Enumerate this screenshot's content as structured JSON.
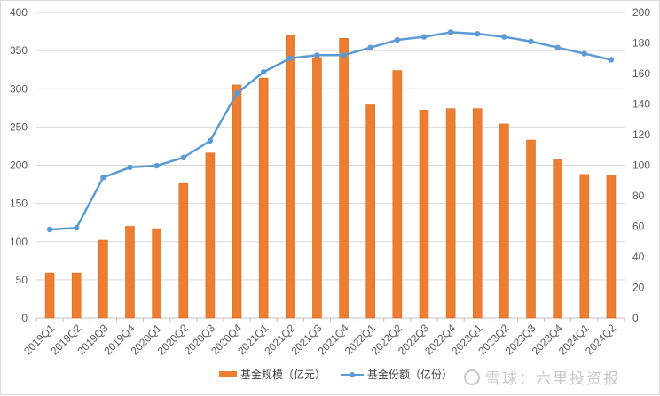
{
  "chart_data": {
    "type": "bar+line",
    "title": "",
    "categories": [
      "2019Q1",
      "2019Q2",
      "2019Q3",
      "2019Q4",
      "2020Q1",
      "2020Q2",
      "2020Q3",
      "2020Q4",
      "2021Q1",
      "2021Q2",
      "2021Q3",
      "2021Q4",
      "2022Q1",
      "2022Q2",
      "2022Q3",
      "2022Q4",
      "2023Q1",
      "2023Q2",
      "2023Q3",
      "2023Q4",
      "2024Q1",
      "2024Q2"
    ],
    "series": [
      {
        "name": "基金规模（亿元）",
        "type": "bar",
        "axis": "left",
        "color": "#ED7D31",
        "values": [
          59,
          59,
          102,
          120,
          117,
          176,
          216,
          305,
          314,
          370,
          341,
          366,
          280,
          324,
          272,
          274,
          274,
          254,
          233,
          208,
          188,
          187
        ]
      },
      {
        "name": "基金份额（亿份）",
        "type": "line",
        "axis": "right",
        "color": "#5B9BD5",
        "values": [
          58,
          59,
          92,
          98.6,
          99.7,
          105,
          116,
          147,
          161,
          170,
          172,
          172,
          177,
          182,
          184,
          187,
          186,
          184,
          181,
          177,
          173,
          169
        ]
      }
    ],
    "left_axis": {
      "label": "",
      "ylim": [
        0,
        400
      ],
      "ticks": [
        0,
        50,
        100,
        150,
        200,
        250,
        300,
        350,
        400
      ]
    },
    "right_axis": {
      "label": "",
      "ylim": [
        0,
        200
      ],
      "ticks": [
        0,
        20,
        40,
        60,
        80,
        100,
        120,
        140,
        160,
        180,
        200
      ]
    },
    "xlabel": "",
    "grid": true,
    "legend_position": "bottom"
  },
  "legend": {
    "bar_label": "基金规模（亿元）",
    "line_label": "基金份额（亿份）"
  },
  "watermark": "雪球：六里投资报"
}
